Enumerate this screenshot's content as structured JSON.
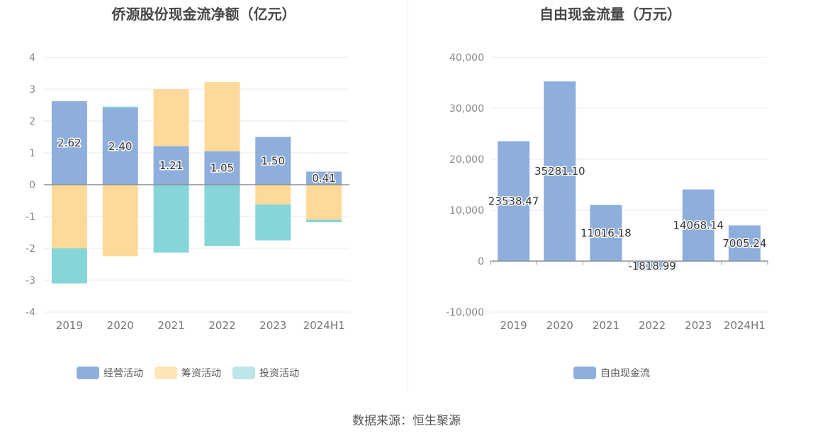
{
  "source_label": "数据来源：恒生聚源",
  "chart_data": [
    {
      "type": "bar",
      "stacked": true,
      "title": "侨源股份现金流净额（亿元）",
      "categories": [
        "2019",
        "2020",
        "2021",
        "2022",
        "2023",
        "2024H1"
      ],
      "ylim": [
        -4,
        4
      ],
      "yticks": [
        4,
        3,
        2,
        1,
        0,
        -1,
        -2,
        -3,
        -4
      ],
      "grid": true,
      "legend_position": "bottom",
      "series": [
        {
          "name": "经营活动",
          "color": "#8eaedb",
          "values": [
            2.62,
            2.4,
            1.21,
            1.05,
            1.5,
            0.41
          ],
          "labels": [
            "2.62",
            "2.40",
            "1.21",
            "1.05",
            "1.50",
            "0.41"
          ]
        },
        {
          "name": "筹资活动",
          "color": "#ffd999",
          "values": [
            -2.0,
            -2.25,
            1.79,
            2.17,
            -0.62,
            -1.1
          ]
        },
        {
          "name": "投资活动",
          "color": "#86d5d9",
          "values": [
            -1.1,
            0.05,
            -2.13,
            -1.93,
            -1.13,
            -0.08
          ]
        }
      ]
    },
    {
      "type": "bar",
      "title": "自由现金流量（万元）",
      "categories": [
        "2019",
        "2020",
        "2021",
        "2022",
        "2023",
        "2024H1"
      ],
      "ylim": [
        -10000,
        40000
      ],
      "yticks": [
        "40,000",
        "30,000",
        "20,000",
        "10,000",
        "0",
        "-10,000"
      ],
      "grid": true,
      "legend_position": "bottom",
      "series": [
        {
          "name": "自由现金流",
          "color": "#8eaedb",
          "values": [
            23538.47,
            35281.1,
            11016.18,
            -1818.99,
            14068.14,
            7005.24
          ],
          "labels": [
            "23538.47",
            "35281.10",
            "11016.18",
            "-1818.99",
            "14068.14",
            "7005.24"
          ]
        }
      ]
    }
  ]
}
